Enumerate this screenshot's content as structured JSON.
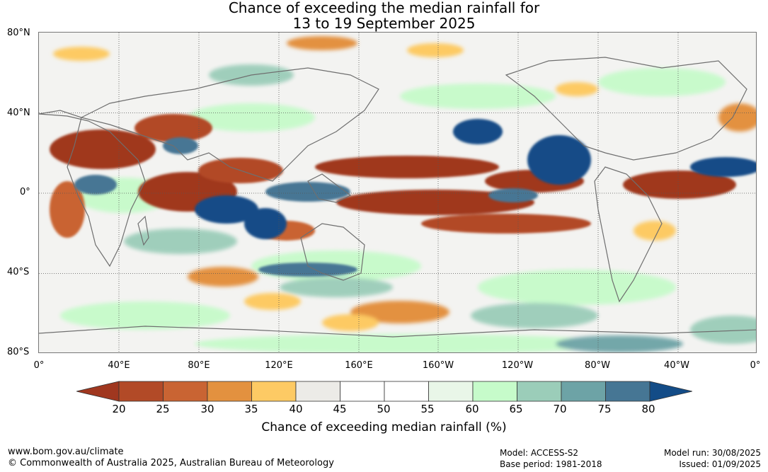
{
  "title": {
    "line1": "Chance of exceeding the median rainfall for",
    "line2": "13 to 19 September 2025"
  },
  "axes": {
    "lat_labels": [
      "80°N",
      "40°N",
      "0°",
      "40°S",
      "80°S"
    ],
    "lon_labels": [
      "0°",
      "40°E",
      "80°E",
      "120°E",
      "160°E",
      "160°W",
      "120°W",
      "80°W",
      "40°W",
      "0°"
    ]
  },
  "legend": {
    "ticks": [
      "20",
      "25",
      "30",
      "35",
      "40",
      "45",
      "50",
      "55",
      "60",
      "65",
      "70",
      "75",
      "80"
    ],
    "colors": [
      "#a0371f",
      "#b24a27",
      "#c96433",
      "#e3913f",
      "#fdca64",
      "#ecebe7",
      "#ffffff",
      "#ffffff",
      "#e9f6e8",
      "#c6fbca",
      "#9bcdb9",
      "#6da3a6",
      "#467694",
      "#134c87"
    ],
    "label": "Chance of exceeding median rainfall (%)"
  },
  "footer": {
    "website": "www.bom.gov.au/climate",
    "copyright": "© Commonwealth of Australia 2025, Australian Bureau of Meteorology",
    "model": "Model: ACCESS-S2",
    "base_period": "Base period: 1981-2018",
    "model_run": "Model run: 30/08/2025",
    "issued": "Issued: 01/09/2025"
  }
}
